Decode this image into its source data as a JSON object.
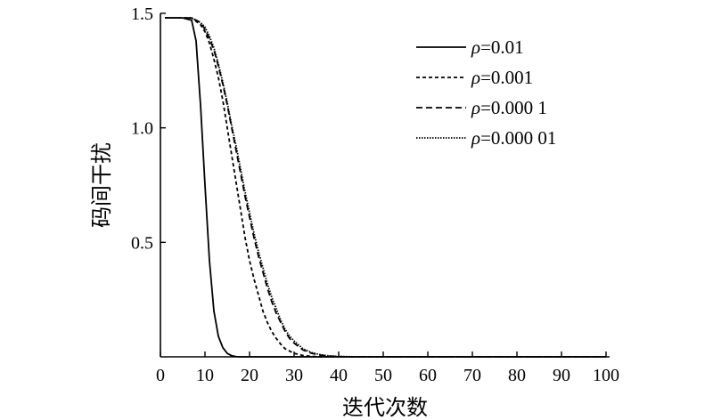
{
  "chart_data": {
    "type": "line",
    "xlabel": "迭代次数",
    "ylabel": "码间干扰",
    "xlim": [
      0,
      100
    ],
    "ylim": [
      0,
      1.5
    ],
    "x_ticks": [
      0,
      10,
      20,
      30,
      40,
      50,
      60,
      70,
      80,
      90,
      100
    ],
    "x_tick_labels": [
      "0",
      "10",
      "20",
      "30",
      "40",
      "50",
      "60",
      "70",
      "80",
      "90",
      "100"
    ],
    "y_ticks": [
      0.5,
      1.0,
      1.5
    ],
    "y_tick_labels": [
      "0.5",
      "1.0",
      "1.5"
    ],
    "grid": false,
    "legend_position": "top-right",
    "series": [
      {
        "legend_symbol": "ρ",
        "legend_value": "=0.01",
        "dash": "solid",
        "x": [
          1,
          3,
          5,
          7,
          8,
          9,
          10,
          11,
          12,
          13,
          14,
          15,
          16,
          17,
          18,
          20,
          100
        ],
        "y": [
          1.48,
          1.48,
          1.48,
          1.47,
          1.38,
          1.1,
          0.75,
          0.42,
          0.2,
          0.09,
          0.04,
          0.015,
          0.005,
          0.001,
          0.0,
          0.0,
          0.0
        ]
      },
      {
        "legend_symbol": "ρ",
        "legend_value": "=0.001",
        "dash": "dotted",
        "x": [
          1,
          3,
          5,
          7,
          9,
          10,
          11,
          12,
          13,
          14,
          15,
          16,
          17,
          18,
          19,
          20,
          21,
          22,
          23,
          24,
          25,
          26,
          27,
          28,
          30,
          32,
          34,
          36,
          100
        ],
        "y": [
          1.48,
          1.48,
          1.48,
          1.48,
          1.45,
          1.42,
          1.37,
          1.3,
          1.22,
          1.12,
          1.0,
          0.88,
          0.76,
          0.64,
          0.52,
          0.42,
          0.34,
          0.27,
          0.2,
          0.15,
          0.11,
          0.08,
          0.055,
          0.035,
          0.015,
          0.006,
          0.002,
          0.0,
          0.0
        ]
      },
      {
        "legend_symbol": "ρ",
        "legend_value": "=0.000 1",
        "dash": "dashed",
        "x": [
          1,
          3,
          5,
          7,
          9,
          10,
          11,
          12,
          13,
          14,
          15,
          16,
          17,
          18,
          19,
          20,
          21,
          22,
          23,
          24,
          25,
          26,
          27,
          28,
          29,
          30,
          32,
          34,
          36,
          38,
          40,
          42,
          100
        ],
        "y": [
          1.48,
          1.48,
          1.48,
          1.48,
          1.46,
          1.43,
          1.39,
          1.34,
          1.27,
          1.19,
          1.1,
          1.0,
          0.9,
          0.8,
          0.7,
          0.61,
          0.52,
          0.44,
          0.37,
          0.3,
          0.24,
          0.19,
          0.15,
          0.11,
          0.08,
          0.06,
          0.03,
          0.015,
          0.007,
          0.003,
          0.001,
          0.0,
          0.0
        ]
      },
      {
        "legend_symbol": "ρ",
        "legend_value": "=0.000 01",
        "dash": "fine-dotted",
        "x": [
          1,
          3,
          5,
          7,
          9,
          10,
          11,
          12,
          13,
          14,
          15,
          16,
          17,
          18,
          19,
          20,
          21,
          22,
          23,
          24,
          25,
          26,
          27,
          28,
          29,
          30,
          32,
          34,
          36,
          38,
          40,
          42,
          44,
          100
        ],
        "y": [
          1.48,
          1.48,
          1.48,
          1.48,
          1.46,
          1.44,
          1.4,
          1.35,
          1.28,
          1.2,
          1.11,
          1.01,
          0.92,
          0.82,
          0.72,
          0.63,
          0.54,
          0.46,
          0.39,
          0.32,
          0.26,
          0.21,
          0.16,
          0.12,
          0.09,
          0.07,
          0.035,
          0.018,
          0.009,
          0.004,
          0.002,
          0.001,
          0.0,
          0.0
        ]
      }
    ]
  }
}
